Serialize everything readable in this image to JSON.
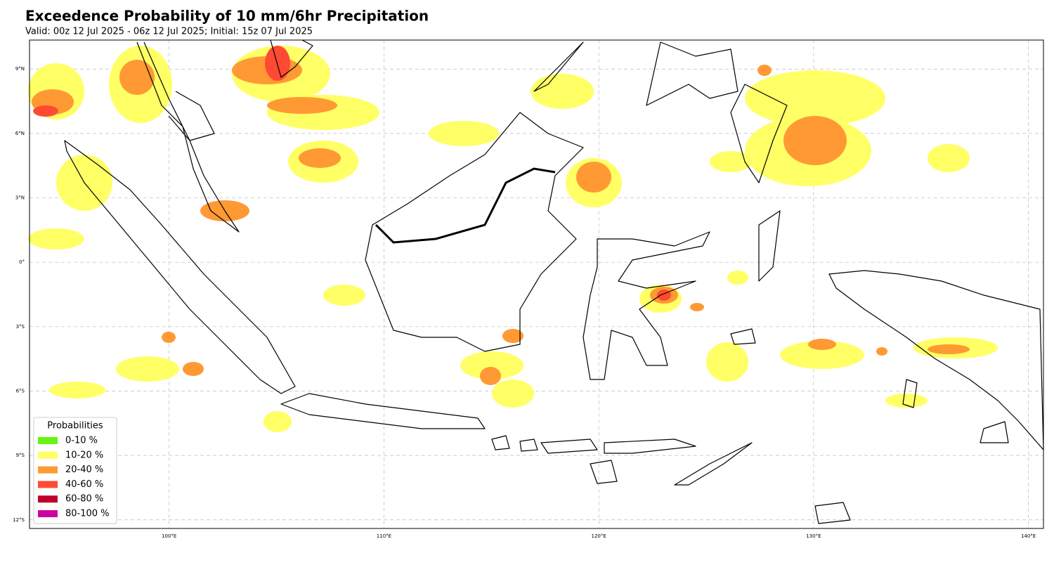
{
  "header": {
    "title": "Exceedence Probability of 10 mm/6hr Precipitation",
    "subtitle": "Valid: 00z 12 Jul 2025 - 06z 12 Jul 2025; Initial: 15z 07 Jul 2025"
  },
  "map": {
    "xlim": [
      93.5,
      140.7
    ],
    "ylim": [
      -12.4,
      10.35
    ],
    "grid": true,
    "xticks": [
      {
        "value": 100,
        "label": "100°E"
      },
      {
        "value": 110,
        "label": "110°E"
      },
      {
        "value": 120,
        "label": "120°E"
      },
      {
        "value": 130,
        "label": "130°E"
      },
      {
        "value": 140,
        "label": "140°E"
      }
    ],
    "yticks": [
      {
        "value": 9,
        "label": "9°N"
      },
      {
        "value": 6,
        "label": "6°N"
      },
      {
        "value": 3,
        "label": "3°N"
      },
      {
        "value": 0,
        "label": "0°"
      },
      {
        "value": -3,
        "label": "3°S"
      },
      {
        "value": -6,
        "label": "6°S"
      },
      {
        "value": -9,
        "label": "9°S"
      },
      {
        "value": -12,
        "label": "12°S"
      }
    ]
  },
  "legend": {
    "title": "Probabilities",
    "items": [
      {
        "label": "0-10 %",
        "color": "#66f511"
      },
      {
        "label": "10-20 %",
        "color": "#ffff66"
      },
      {
        "label": "20-40 %",
        "color": "#ff9933"
      },
      {
        "label": "40-60 %",
        "color": "#ff4a33"
      },
      {
        "label": "60-80 %",
        "color": "#c00030"
      },
      {
        "label": "80-100 %",
        "color": "#d000a0"
      }
    ]
  }
}
